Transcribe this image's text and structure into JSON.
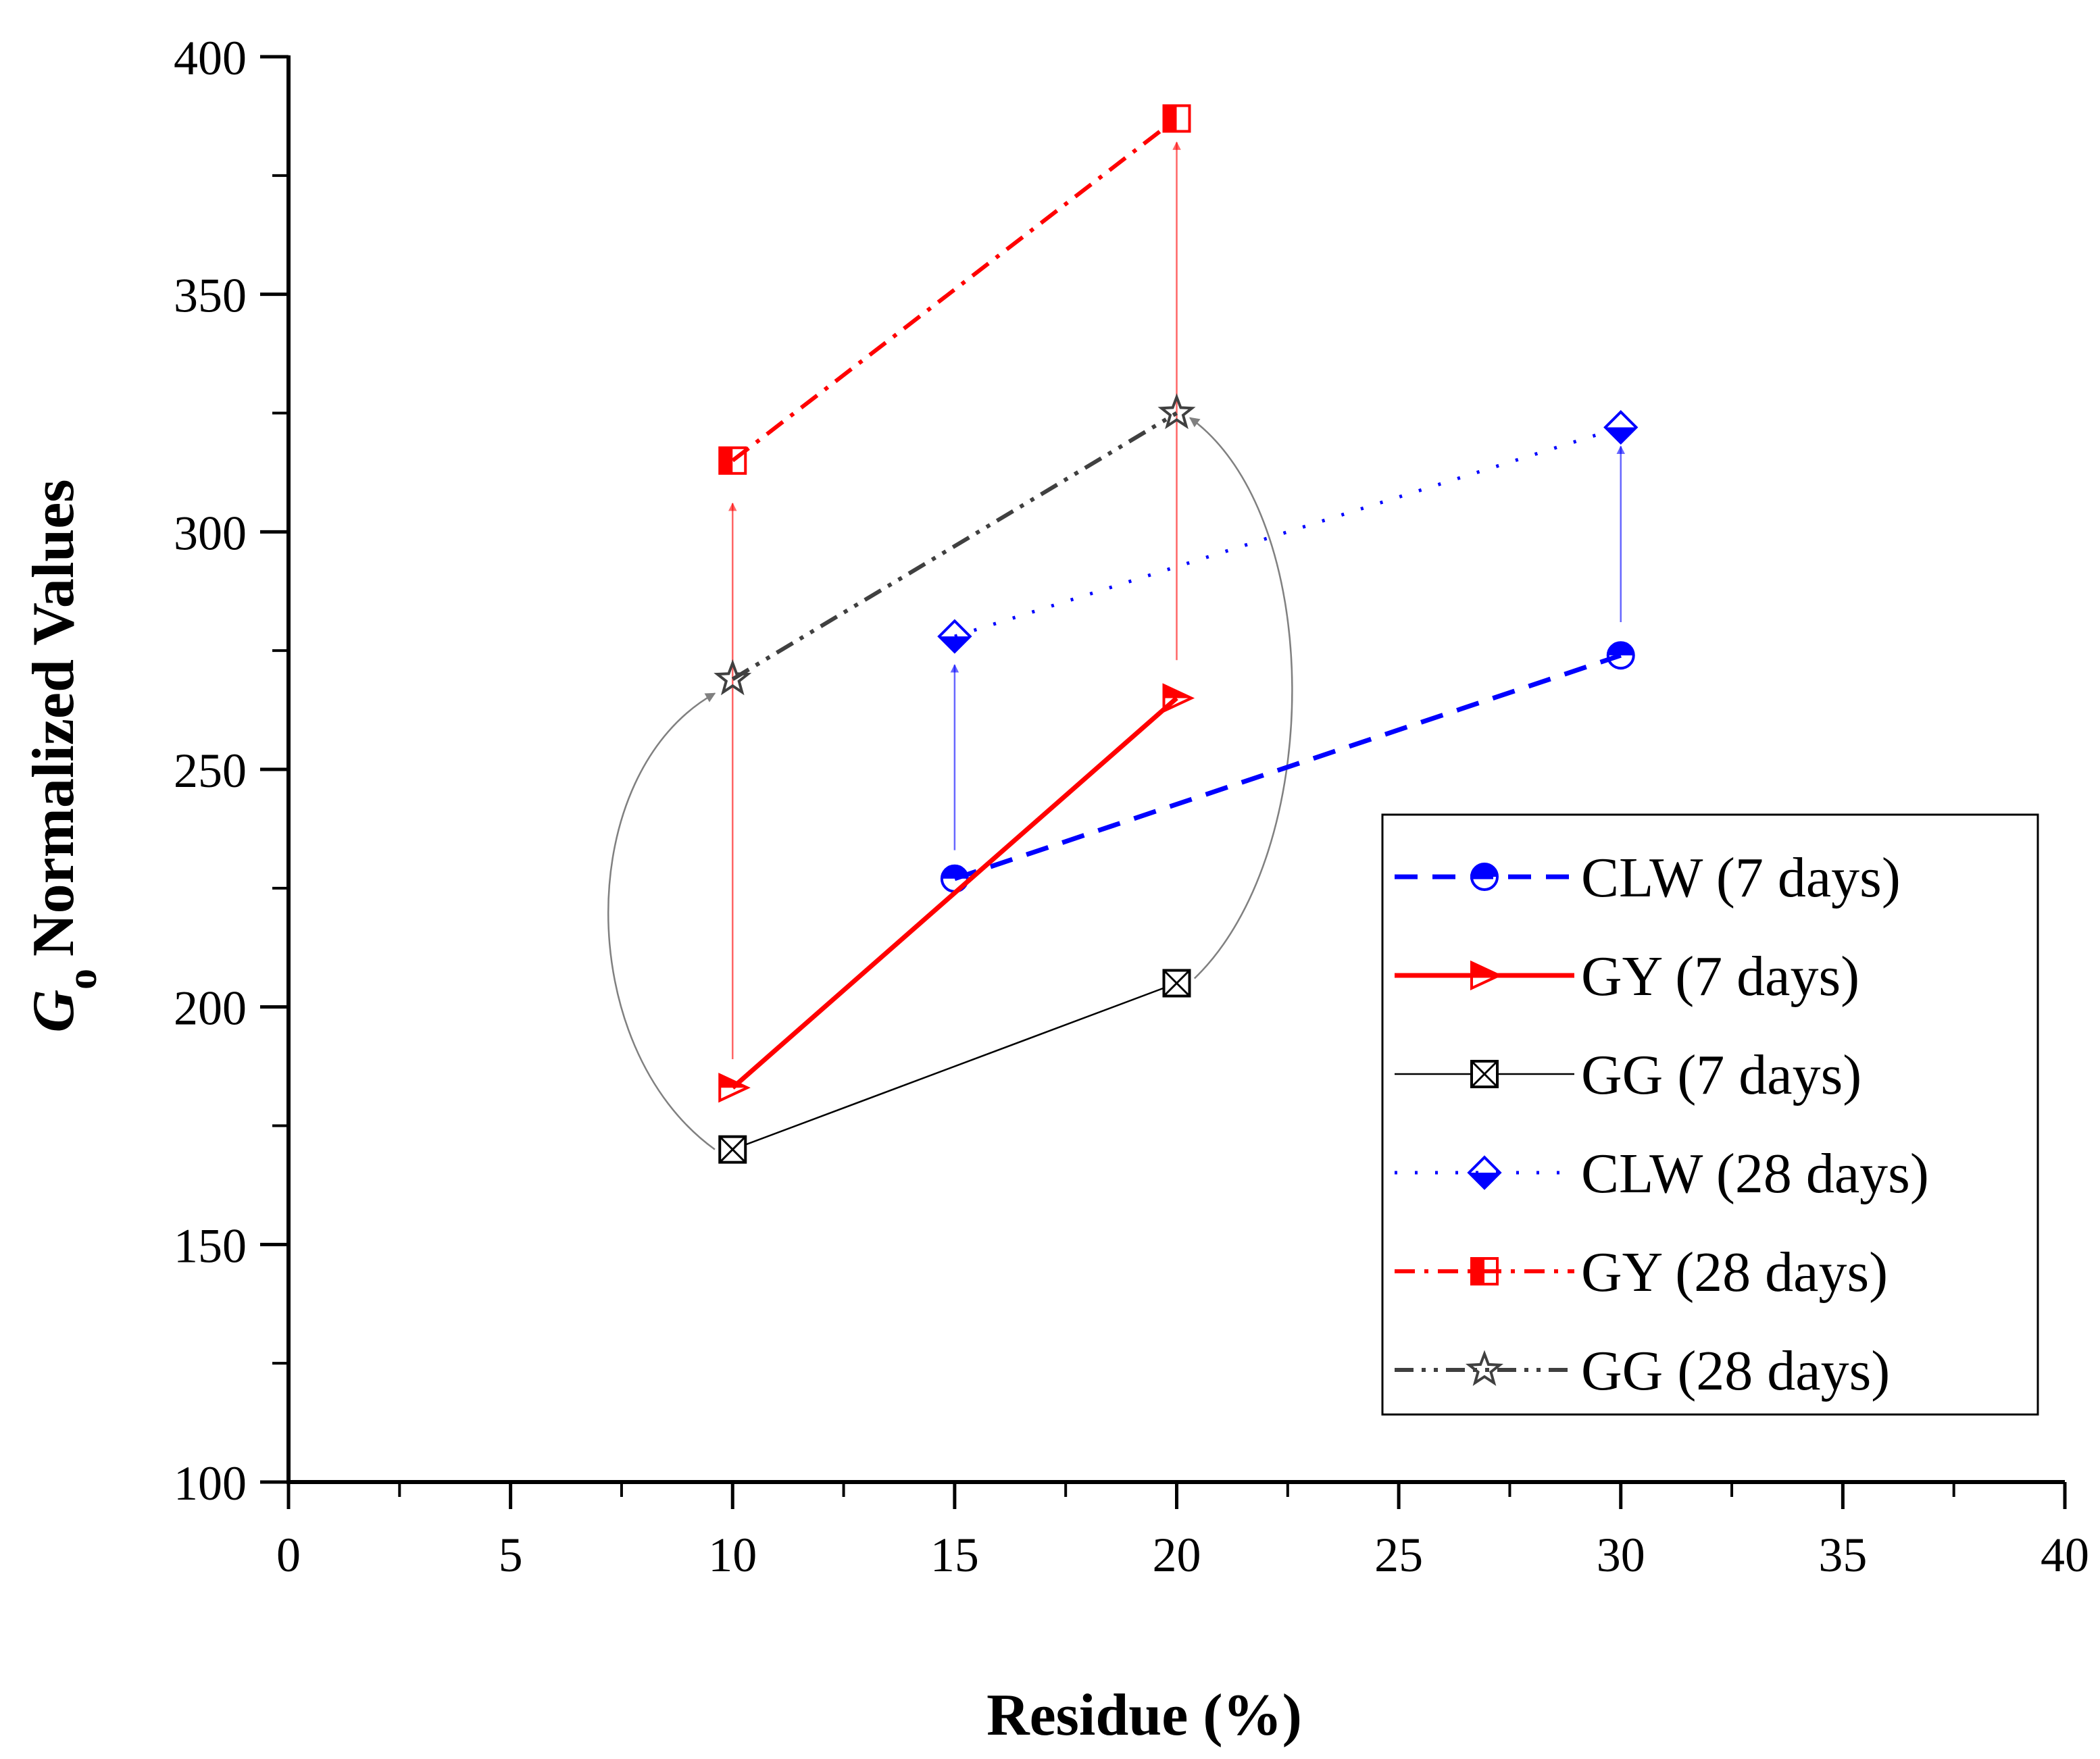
{
  "chart_data": {
    "type": "line",
    "title": "",
    "xlabel": "Residue (%)",
    "ylabel": {
      "symbol": "G",
      "subscript": "o",
      "text": "Normalized Values"
    },
    "xlim": [
      0,
      40
    ],
    "ylim": [
      100,
      400
    ],
    "xticks": [
      0,
      5,
      10,
      15,
      20,
      25,
      30,
      35,
      40
    ],
    "yticks": [
      100,
      150,
      200,
      250,
      300,
      350,
      400
    ],
    "grid": false,
    "legend_position": "right",
    "series": [
      {
        "name": "CLW (7 days)",
        "color": "#0000ff",
        "dash": "dashed",
        "marker": "circle-half",
        "x": [
          15,
          30
        ],
        "y": [
          227,
          274
        ]
      },
      {
        "name": "GY (7 days)",
        "color": "#ff0000",
        "dash": "solid",
        "marker": "triangle-right-half",
        "x": [
          10,
          20
        ],
        "y": [
          183,
          265
        ]
      },
      {
        "name": "GG (7 days)",
        "color": "#000000",
        "dash": "thin",
        "marker": "square-x",
        "x": [
          10,
          20
        ],
        "y": [
          170,
          205
        ]
      },
      {
        "name": "CLW (28 days)",
        "color": "#0000ff",
        "dash": "dotted",
        "marker": "diamond-half",
        "x": [
          15,
          30
        ],
        "y": [
          278,
          322
        ]
      },
      {
        "name": "GY (28 days)",
        "color": "#ff0000",
        "dash": "dash-dot",
        "marker": "square-half",
        "x": [
          10,
          20
        ],
        "y": [
          315,
          387
        ]
      },
      {
        "name": "GG (28 days)",
        "color": "#404040",
        "dash": "dash-dot-dot",
        "marker": "star",
        "x": [
          10,
          20
        ],
        "y": [
          269,
          325
        ]
      }
    ],
    "annotations": [
      {
        "kind": "straight-arrow",
        "color": "#0000ff",
        "from": [
          15,
          233
        ],
        "to": [
          15,
          272
        ]
      },
      {
        "kind": "straight-arrow",
        "color": "#0000ff",
        "from": [
          30,
          281
        ],
        "to": [
          30,
          318
        ]
      },
      {
        "kind": "straight-arrow",
        "color": "#ff0000",
        "from": [
          10,
          189
        ],
        "to": [
          10,
          306
        ]
      },
      {
        "kind": "straight-arrow",
        "color": "#ff0000",
        "from": [
          20,
          273
        ],
        "to": [
          20,
          382
        ]
      },
      {
        "kind": "curved-arrow",
        "color": "#808080",
        "from": [
          9.6,
          170
        ],
        "to": [
          9.6,
          266
        ],
        "bend": -3.2
      },
      {
        "kind": "curved-arrow",
        "color": "#808080",
        "from": [
          20.4,
          206
        ],
        "to": [
          20.3,
          324
        ],
        "bend": 3.0
      }
    ]
  }
}
